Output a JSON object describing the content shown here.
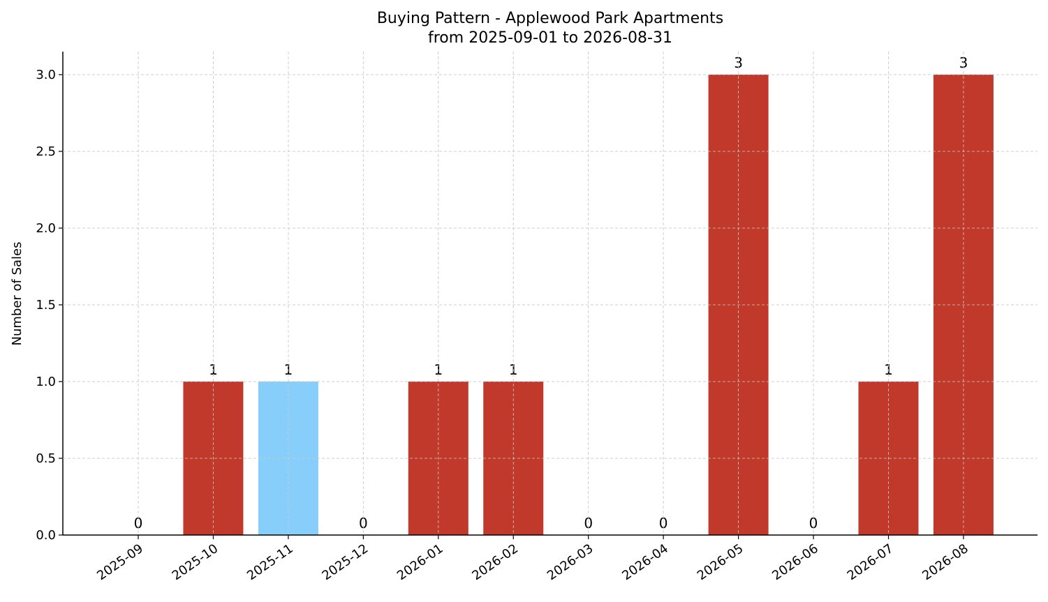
{
  "chart_data": {
    "type": "bar",
    "title": "Buying Pattern - Applewood Park Apartments",
    "subtitle": "from 2025-09-01 to 2026-08-31",
    "xlabel": "",
    "ylabel": "Number of Sales",
    "categories": [
      "2025-09",
      "2025-10",
      "2025-11",
      "2025-12",
      "2026-01",
      "2026-02",
      "2026-03",
      "2026-04",
      "2026-05",
      "2026-06",
      "2026-07",
      "2026-08"
    ],
    "values": [
      0,
      1,
      1,
      0,
      1,
      1,
      0,
      0,
      3,
      0,
      1,
      3
    ],
    "value_labels": [
      "0",
      "1",
      "1",
      "0",
      "1",
      "1",
      "0",
      "0",
      "3",
      "0",
      "1",
      "3"
    ],
    "bar_colors": [
      "#c0392b",
      "#c0392b",
      "#87cefa",
      "#c0392b",
      "#c0392b",
      "#c0392b",
      "#c0392b",
      "#c0392b",
      "#c0392b",
      "#c0392b",
      "#c0392b",
      "#c0392b"
    ],
    "ylim": [
      0,
      3.15
    ],
    "yticks": [
      0,
      0.5,
      1,
      1.5,
      2,
      2.5,
      3
    ],
    "ytick_labels": [
      "0.0",
      "0.5",
      "1.0",
      "1.5",
      "2.0",
      "2.5",
      "3.0"
    ],
    "grid": true,
    "legend": "none"
  }
}
